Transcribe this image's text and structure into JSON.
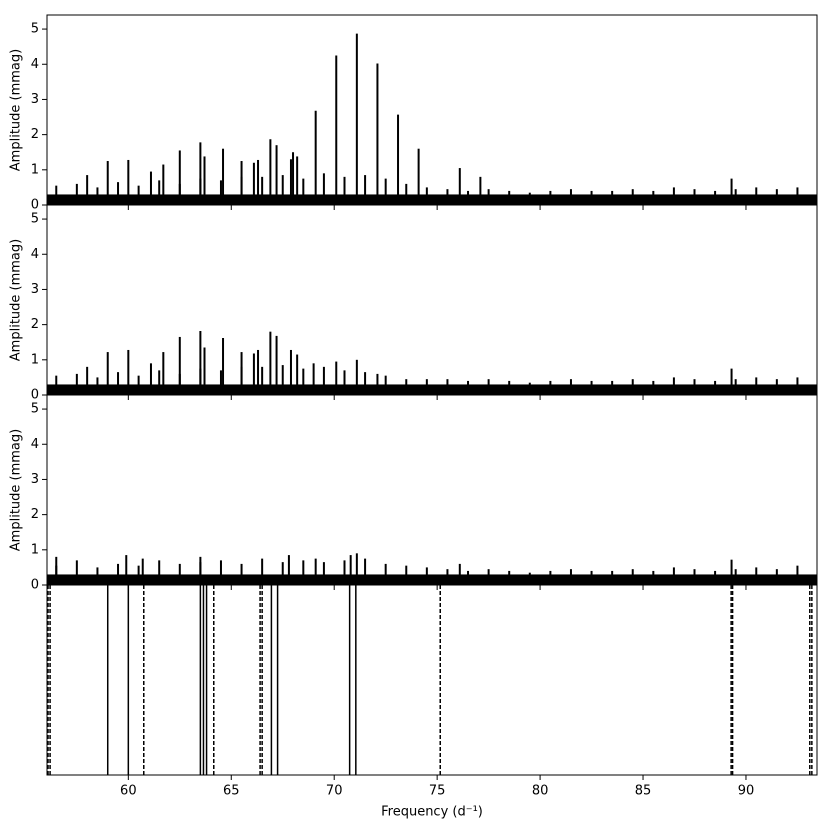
{
  "chart_data": [
    {
      "type": "stem",
      "ylabel": "Amplitude (mmag)",
      "color": "#000000",
      "noise_floor": 0.3,
      "xlim": [
        56.05,
        93.45
      ],
      "xticks": [
        60,
        65,
        70,
        75,
        80,
        85,
        90
      ],
      "ylim": [
        0,
        5.4
      ],
      "yticks": [
        0,
        1,
        2,
        3,
        4,
        5
      ],
      "series": [
        {
          "x": [
            58.0,
            59.0,
            60.0,
            61.1,
            61.7,
            62.5,
            63.5,
            63.7,
            64.6,
            65.5,
            66.1,
            66.3,
            66.9,
            67.2,
            67.9,
            68.0,
            68.2,
            69.1,
            70.1,
            71.1,
            72.1,
            73.1,
            74.1,
            76.1,
            77.1,
            89.3
          ],
          "values": [
            0.85,
            1.25,
            1.28,
            0.95,
            1.15,
            1.55,
            1.78,
            1.38,
            1.6,
            1.25,
            1.2,
            1.28,
            1.87,
            1.7,
            1.3,
            1.5,
            1.38,
            2.68,
            4.25,
            4.87,
            4.02,
            2.57,
            1.6,
            1.05,
            0.8,
            0.75
          ]
        },
        {
          "x": [
            56.5,
            57.5,
            58.5,
            59.5,
            60.5,
            61.5,
            62.5,
            63.5,
            64.5,
            65.5,
            66.5,
            67.5,
            68.5,
            69.5,
            70.5,
            71.5,
            72.5,
            73.5,
            74.5,
            75.5,
            76.5,
            77.5,
            78.5,
            79.5,
            80.5,
            81.5,
            82.5,
            83.5,
            84.5,
            85.5,
            86.5,
            87.5,
            88.5,
            89.5,
            90.5,
            91.5,
            92.5
          ],
          "values": [
            0.55,
            0.6,
            0.5,
            0.65,
            0.55,
            0.7,
            0.6,
            0.75,
            0.7,
            0.8,
            0.8,
            0.85,
            0.75,
            0.9,
            0.8,
            0.85,
            0.75,
            0.6,
            0.5,
            0.45,
            0.4,
            0.45,
            0.4,
            0.35,
            0.4,
            0.45,
            0.4,
            0.4,
            0.45,
            0.4,
            0.5,
            0.45,
            0.4,
            0.45,
            0.5,
            0.45,
            0.5
          ]
        }
      ]
    },
    {
      "type": "stem",
      "ylabel": "Amplitude (mmag)",
      "color": "#000000",
      "noise_floor": 0.3,
      "xlim": [
        56.05,
        93.45
      ],
      "xticks": [
        60,
        65,
        70,
        75,
        80,
        85,
        90
      ],
      "ylim": [
        0,
        5.4
      ],
      "yticks": [
        0,
        1,
        2,
        3,
        4,
        5
      ],
      "series": [
        {
          "x": [
            58.0,
            59.0,
            60.0,
            61.1,
            61.7,
            62.5,
            63.5,
            63.7,
            64.6,
            65.5,
            66.1,
            66.3,
            66.9,
            67.2,
            67.9,
            68.2,
            69.0,
            70.1,
            71.1,
            72.1,
            89.3
          ],
          "values": [
            0.8,
            1.22,
            1.28,
            0.9,
            1.22,
            1.65,
            1.82,
            1.35,
            1.62,
            1.22,
            1.18,
            1.28,
            1.8,
            1.68,
            1.28,
            1.15,
            0.9,
            0.95,
            1.0,
            0.6,
            0.75
          ]
        },
        {
          "x": [
            56.5,
            57.5,
            58.5,
            59.5,
            60.5,
            61.5,
            62.5,
            63.5,
            64.5,
            65.5,
            66.5,
            67.5,
            68.5,
            69.5,
            70.5,
            71.5,
            72.5,
            73.5,
            74.5,
            75.5,
            76.5,
            77.5,
            78.5,
            79.5,
            80.5,
            81.5,
            82.5,
            83.5,
            84.5,
            85.5,
            86.5,
            87.5,
            88.5,
            89.5,
            90.5,
            91.5,
            92.5
          ],
          "values": [
            0.55,
            0.6,
            0.5,
            0.65,
            0.55,
            0.7,
            0.6,
            0.75,
            0.7,
            0.8,
            0.8,
            0.85,
            0.75,
            0.8,
            0.7,
            0.65,
            0.55,
            0.45,
            0.45,
            0.45,
            0.4,
            0.45,
            0.4,
            0.35,
            0.4,
            0.45,
            0.4,
            0.4,
            0.45,
            0.4,
            0.5,
            0.45,
            0.4,
            0.45,
            0.5,
            0.45,
            0.5
          ]
        }
      ]
    },
    {
      "type": "stem",
      "ylabel": "Amplitude (mmag)",
      "color": "#000000",
      "noise_floor": 0.3,
      "xlim": [
        56.05,
        93.45
      ],
      "xticks": [
        60,
        65,
        70,
        75,
        80,
        85,
        90
      ],
      "ylim": [
        0,
        5.4
      ],
      "yticks": [
        0,
        1,
        2,
        3,
        4,
        5
      ],
      "series": [
        {
          "x": [
            56.5,
            59.9,
            60.7,
            63.5,
            67.8,
            69.1,
            70.8,
            71.1,
            76.1,
            89.3
          ],
          "values": [
            0.8,
            0.85,
            0.75,
            0.8,
            0.85,
            0.75,
            0.85,
            0.9,
            0.6,
            0.72
          ]
        },
        {
          "x": [
            56.5,
            57.5,
            58.5,
            59.5,
            60.5,
            61.5,
            62.5,
            63.5,
            64.5,
            65.5,
            66.5,
            67.5,
            68.5,
            69.5,
            70.5,
            71.5,
            72.5,
            73.5,
            74.5,
            75.5,
            76.5,
            77.5,
            78.5,
            79.5,
            80.5,
            81.5,
            82.5,
            83.5,
            84.5,
            85.5,
            86.5,
            87.5,
            88.5,
            89.5,
            90.5,
            91.5,
            92.5
          ],
          "values": [
            0.55,
            0.7,
            0.5,
            0.6,
            0.55,
            0.7,
            0.6,
            0.65,
            0.7,
            0.6,
            0.75,
            0.65,
            0.7,
            0.65,
            0.7,
            0.75,
            0.6,
            0.55,
            0.5,
            0.45,
            0.4,
            0.45,
            0.4,
            0.35,
            0.4,
            0.45,
            0.4,
            0.4,
            0.45,
            0.4,
            0.5,
            0.45,
            0.4,
            0.45,
            0.5,
            0.45,
            0.55
          ]
        }
      ]
    },
    {
      "type": "vlines",
      "xlabel": "Frequency (d⁻¹)",
      "color": "#000000",
      "xlim": [
        56.05,
        93.45
      ],
      "xticks": [
        60,
        65,
        70,
        75,
        80,
        85,
        90
      ],
      "lines": [
        {
          "style": "solid",
          "x": [
            59.0,
            60.0,
            63.5,
            63.65,
            63.8,
            66.95,
            67.25,
            70.75,
            71.05
          ]
        },
        {
          "style": "dashed",
          "x": [
            56.1,
            56.2,
            60.75,
            64.15,
            66.4,
            66.5,
            75.15,
            89.28,
            89.35,
            93.1,
            93.2
          ]
        }
      ]
    }
  ]
}
